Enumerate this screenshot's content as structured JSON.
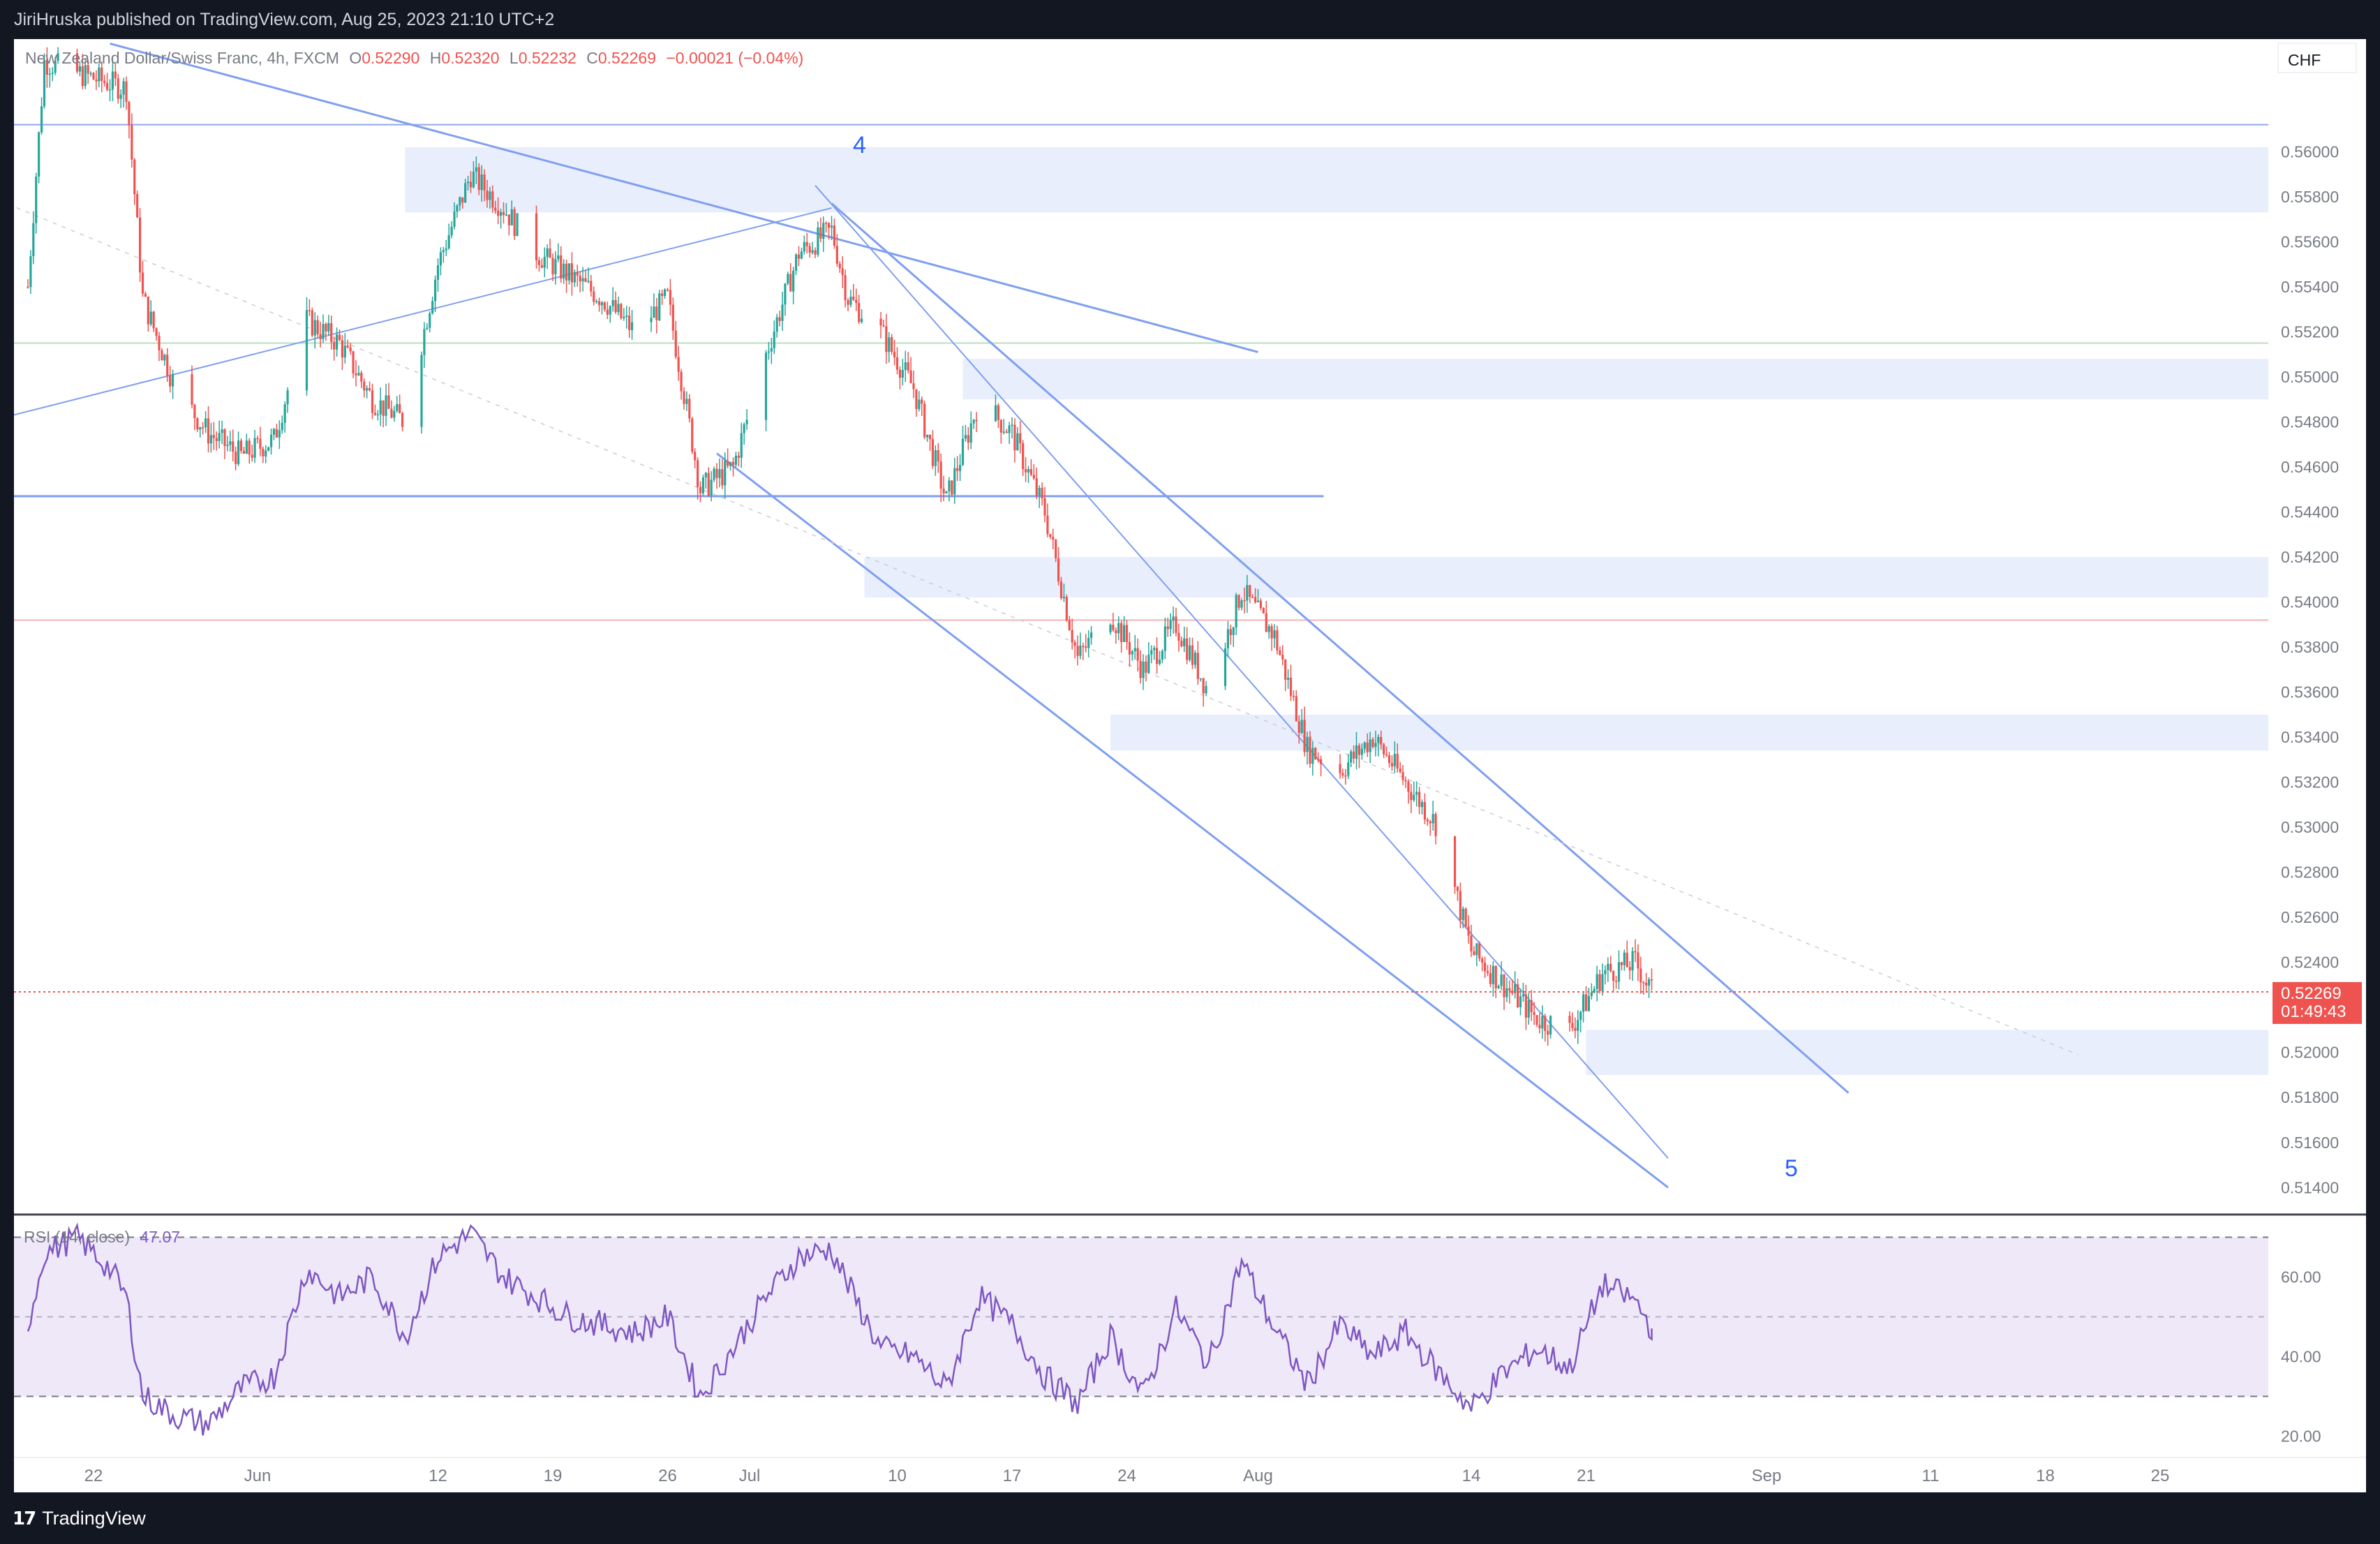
{
  "header": {
    "published": "JiriHruska published on TradingView.com, Aug 25, 2023 21:10 UTC+2"
  },
  "legend": {
    "symbol": "New Zealand Dollar/Swiss Franc, 4h, FXCM",
    "o_label": "O",
    "o": "0.52290",
    "h_label": "H",
    "h": "0.52320",
    "l_label": "L",
    "l": "0.52232",
    "c_label": "C",
    "c": "0.52269",
    "change": "−0.00021 (−0.04%)"
  },
  "currency": "CHF",
  "price_tag": {
    "price": "0.52269",
    "countdown": "01:49:43"
  },
  "wave_labels": {
    "four": "4",
    "five": "5"
  },
  "rsi": {
    "label": "RSI (14, close)",
    "value": "47.07"
  },
  "footer": {
    "brand": "TradingView",
    "logo_text": "17"
  },
  "colors": {
    "up": "#26a69a",
    "down": "#ef5350",
    "zone": "#e8eefc",
    "trendline": "#7f9ff0",
    "rsi_line": "#7e57c2",
    "rsi_band": "#efe8f8",
    "label_blue": "#2962ff"
  },
  "chart_data": [
    {
      "type": "candlestick",
      "title": "New Zealand Dollar/Swiss Franc, 4h, FXCM",
      "ylim": [
        0.5128,
        0.565
      ],
      "y_ticks": [
        "0.56000",
        "0.55800",
        "0.55600",
        "0.55400",
        "0.55200",
        "0.55000",
        "0.54800",
        "0.54600",
        "0.54400",
        "0.54200",
        "0.54000",
        "0.53800",
        "0.53600",
        "0.53400",
        "0.53200",
        "0.53000",
        "0.52800",
        "0.52600",
        "0.52400",
        "0.52200",
        "0.52000",
        "0.51800",
        "0.51600",
        "0.51400"
      ],
      "x_ticks": [
        "22",
        "Jun",
        "12",
        "19",
        "26",
        "Jul",
        "10",
        "17",
        "24",
        "Aug",
        "14",
        "21",
        "Sep",
        "11",
        "18",
        "25"
      ],
      "path_points": [
        [
          "2023-05-18",
          0.554
        ],
        [
          "2023-05-19",
          0.564
        ],
        [
          "2023-05-21",
          0.5635
        ],
        [
          "2023-05-24",
          0.5628
        ],
        [
          "2023-05-25",
          0.5535
        ],
        [
          "2023-05-27",
          0.5495
        ],
        [
          "2023-05-29",
          0.5475
        ],
        [
          "2023-05-31",
          0.5465
        ],
        [
          "2023-06-02",
          0.5472
        ],
        [
          "2023-06-04",
          0.5525
        ],
        [
          "2023-06-06",
          0.5515
        ],
        [
          "2023-06-08",
          0.549
        ],
        [
          "2023-06-10",
          0.548
        ],
        [
          "2023-06-12",
          0.555
        ],
        [
          "2023-06-14",
          0.559
        ],
        [
          "2023-06-16",
          0.5575
        ],
        [
          "2023-06-18",
          0.5555
        ],
        [
          "2023-06-20",
          0.5545
        ],
        [
          "2023-06-22",
          0.5535
        ],
        [
          "2023-06-24",
          0.552
        ],
        [
          "2023-06-26",
          0.5535
        ],
        [
          "2023-06-28",
          0.545
        ],
        [
          "2023-06-30",
          0.546
        ],
        [
          "2023-07-02",
          0.551
        ],
        [
          "2023-07-04",
          0.5555
        ],
        [
          "2023-07-06",
          0.5565
        ],
        [
          "2023-07-07",
          0.5535
        ],
        [
          "2023-07-09",
          0.552
        ],
        [
          "2023-07-11",
          0.5495
        ],
        [
          "2023-07-13",
          0.5445
        ],
        [
          "2023-07-15",
          0.549
        ],
        [
          "2023-07-17",
          0.5475
        ],
        [
          "2023-07-19",
          0.544
        ],
        [
          "2023-07-21",
          0.5375
        ],
        [
          "2023-07-23",
          0.5395
        ],
        [
          "2023-07-25",
          0.537
        ],
        [
          "2023-07-27",
          0.539
        ],
        [
          "2023-07-29",
          0.536
        ],
        [
          "2023-07-31",
          0.5405
        ],
        [
          "2023-08-02",
          0.5385
        ],
        [
          "2023-08-04",
          0.5335
        ],
        [
          "2023-08-06",
          0.5325
        ],
        [
          "2023-08-08",
          0.534
        ],
        [
          "2023-08-10",
          0.532
        ],
        [
          "2023-08-12",
          0.53
        ],
        [
          "2023-08-14",
          0.5245
        ],
        [
          "2023-08-16",
          0.523
        ],
        [
          "2023-08-18",
          0.5215
        ],
        [
          "2023-08-20",
          0.521
        ],
        [
          "2023-08-22",
          0.5235
        ],
        [
          "2023-08-24",
          0.524
        ],
        [
          "2023-08-25",
          0.52269
        ]
      ],
      "horizontal_lines": [
        0.5612,
        0.5515,
        0.5447,
        0.5392
      ],
      "supply_demand_zones": [
        [
          0.5573,
          0.5602
        ],
        [
          0.549,
          0.5508
        ],
        [
          0.5402,
          0.542
        ],
        [
          0.5334,
          0.535
        ],
        [
          0.519,
          0.521
        ]
      ],
      "last_price": 0.52269
    },
    {
      "type": "line",
      "title": "RSI (14, close)",
      "ylim": [
        15,
        75
      ],
      "y_ticks": [
        "60.00",
        "40.00",
        "20.00"
      ],
      "bands": [
        70,
        50,
        30
      ],
      "last_value": 47.07,
      "path_points": [
        [
          "2023-05-18",
          48
        ],
        [
          "2023-05-19",
          66
        ],
        [
          "2023-05-21",
          70
        ],
        [
          "2023-05-23",
          62
        ],
        [
          "2023-05-24",
          55
        ],
        [
          "2023-05-25",
          30
        ],
        [
          "2023-05-27",
          25
        ],
        [
          "2023-05-29",
          23
        ],
        [
          "2023-05-31",
          32
        ],
        [
          "2023-06-02",
          35
        ],
        [
          "2023-06-04",
          62
        ],
        [
          "2023-06-06",
          55
        ],
        [
          "2023-06-08",
          60
        ],
        [
          "2023-06-10",
          45
        ],
        [
          "2023-06-12",
          65
        ],
        [
          "2023-06-14",
          71
        ],
        [
          "2023-06-16",
          60
        ],
        [
          "2023-06-18",
          55
        ],
        [
          "2023-06-20",
          50
        ],
        [
          "2023-06-22",
          48
        ],
        [
          "2023-06-24",
          46
        ],
        [
          "2023-06-26",
          50
        ],
        [
          "2023-06-28",
          30
        ],
        [
          "2023-06-30",
          42
        ],
        [
          "2023-07-02",
          55
        ],
        [
          "2023-07-04",
          65
        ],
        [
          "2023-07-06",
          67
        ],
        [
          "2023-07-07",
          58
        ],
        [
          "2023-07-09",
          42
        ],
        [
          "2023-07-11",
          40
        ],
        [
          "2023-07-13",
          32
        ],
        [
          "2023-07-15",
          55
        ],
        [
          "2023-07-17",
          48
        ],
        [
          "2023-07-19",
          35
        ],
        [
          "2023-07-21",
          28
        ],
        [
          "2023-07-23",
          45
        ],
        [
          "2023-07-25",
          30
        ],
        [
          "2023-07-27",
          52
        ],
        [
          "2023-07-29",
          38
        ],
        [
          "2023-07-31",
          64
        ],
        [
          "2023-08-02",
          47
        ],
        [
          "2023-08-04",
          33
        ],
        [
          "2023-08-06",
          48
        ],
        [
          "2023-08-08",
          40
        ],
        [
          "2023-08-10",
          46
        ],
        [
          "2023-08-12",
          36
        ],
        [
          "2023-08-14",
          27
        ],
        [
          "2023-08-16",
          36
        ],
        [
          "2023-08-18",
          42
        ],
        [
          "2023-08-20",
          37
        ],
        [
          "2023-08-22",
          58
        ],
        [
          "2023-08-24",
          54
        ],
        [
          "2023-08-25",
          47.07
        ]
      ]
    }
  ]
}
